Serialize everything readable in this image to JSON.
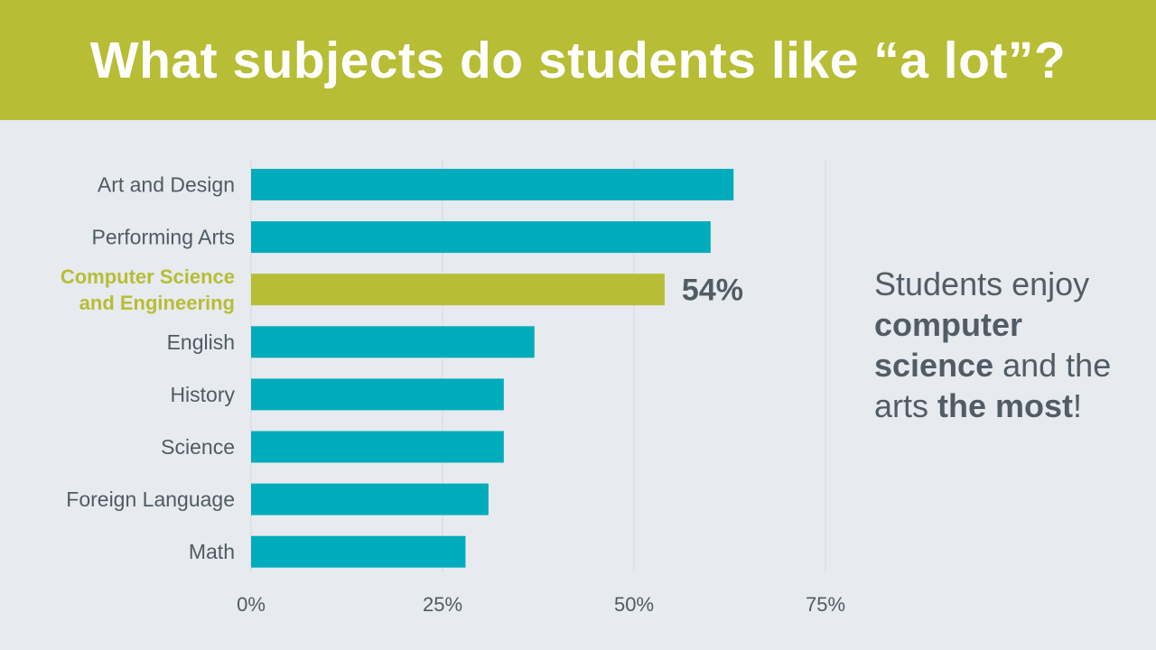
{
  "title": "What subjects do students like “a lot”?",
  "colors": {
    "header_bg": "#b7bd34",
    "background": "#e7ebef",
    "bar": "#00acbb",
    "highlight": "#b7bd34",
    "text": "#525c66",
    "gridline": "#d3d8dd"
  },
  "chart_data": {
    "type": "bar",
    "orientation": "horizontal",
    "categories": [
      "Art and Design",
      "Performing Arts",
      "Computer Science and Engineering",
      "English",
      "History",
      "Science",
      "Foreign Language",
      "Math"
    ],
    "category_label_lines": [
      [
        "Art and Design"
      ],
      [
        "Performing Arts"
      ],
      [
        "Computer Science",
        "and Engineering"
      ],
      [
        "English"
      ],
      [
        "History"
      ],
      [
        "Science"
      ],
      [
        "Foreign Language"
      ],
      [
        "Math"
      ]
    ],
    "values": [
      63,
      60,
      54,
      37,
      33,
      33,
      31,
      28
    ],
    "highlight_index": 2,
    "data_labels": [
      "",
      "",
      "54%",
      "",
      "",
      "",
      "",
      ""
    ],
    "xlim": [
      0,
      75
    ],
    "ticks": [
      0,
      25,
      50,
      75
    ],
    "tick_labels": [
      "0%",
      "25%",
      "50%",
      "75%"
    ],
    "grid": true,
    "title": "",
    "xlabel": "",
    "ylabel": ""
  },
  "callout": {
    "parts": [
      {
        "text": "Students enjoy ",
        "bold": false
      },
      {
        "text": "computer science",
        "bold": true
      },
      {
        "text": " and the arts ",
        "bold": false
      },
      {
        "text": "the most",
        "bold": true
      },
      {
        "text": "!",
        "bold": false
      }
    ]
  }
}
